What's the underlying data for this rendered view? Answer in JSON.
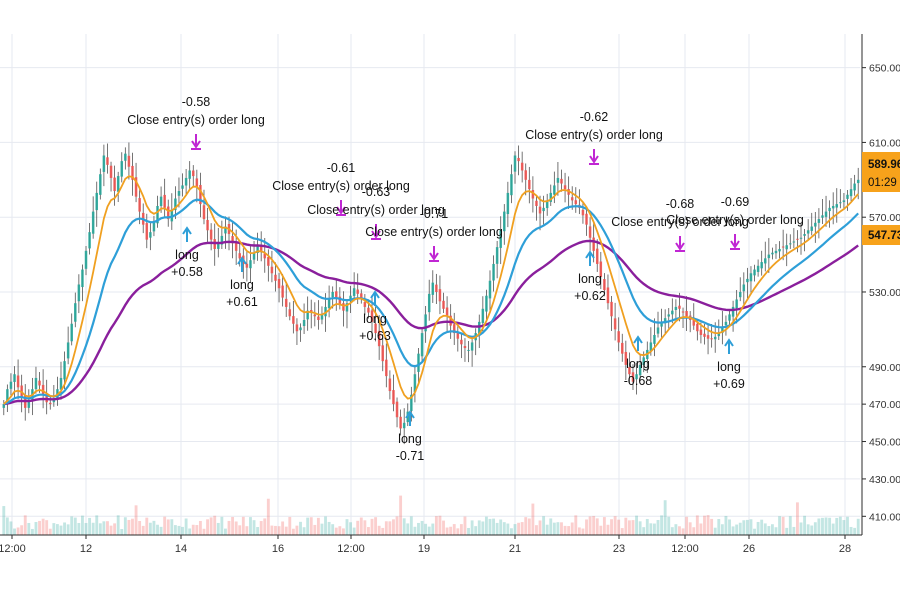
{
  "chart_data": {
    "type": "candlestick",
    "x_ticks": [
      "12:00",
      "12",
      "14",
      "16",
      "12:00",
      "19",
      "21",
      "23",
      "12:00",
      "26",
      "28"
    ],
    "y_ticks": [
      410,
      430,
      450,
      470,
      490,
      530,
      570,
      610,
      650
    ],
    "ylim": [
      400,
      668
    ],
    "current_price": {
      "value": "589.96",
      "countdown": "01:29",
      "color": "#f7a21b"
    },
    "level_label": {
      "value": "547.73",
      "color": "#f7a21b"
    },
    "colors": {
      "up": "#26a69a",
      "down": "#ef5350",
      "wick": "#333333",
      "ma_fast": "#f0a020",
      "ma_mid": "#2e9fd8",
      "ma_slow": "#8a1f9c",
      "signal": "#c026d3",
      "long_arrow": "#2e9fd8",
      "grid": "#e6e9f0"
    },
    "closes": [
      470,
      478,
      482,
      486,
      479,
      474,
      468,
      472,
      478,
      484,
      480,
      475,
      471,
      470,
      473,
      478,
      484,
      493,
      503,
      513,
      524,
      534,
      542,
      552,
      562,
      573,
      583,
      593,
      603,
      598,
      591,
      584,
      592,
      600,
      604,
      597,
      590,
      581,
      573,
      566,
      558,
      562,
      568,
      576,
      581,
      575,
      569,
      574,
      580,
      584,
      587,
      591,
      595,
      592,
      586,
      577,
      569,
      563,
      558,
      553,
      556,
      560,
      565,
      561,
      556,
      552,
      548,
      545,
      543,
      547,
      551,
      555,
      552,
      548,
      544,
      540,
      536,
      532,
      527,
      522,
      517,
      513,
      509,
      511,
      515,
      520,
      519,
      517,
      515,
      518,
      522,
      526,
      530,
      527,
      523,
      520,
      524,
      528,
      532,
      529,
      526,
      522,
      519,
      514,
      508,
      501,
      493,
      485,
      477,
      470,
      463,
      457,
      460,
      466,
      475,
      486,
      497,
      508,
      518,
      529,
      535,
      530,
      525,
      521,
      517,
      512,
      508,
      505,
      502,
      500,
      499,
      503,
      508,
      514,
      521,
      528,
      536,
      545,
      554,
      563,
      573,
      583,
      593,
      603,
      600,
      595,
      590,
      585,
      580,
      576,
      572,
      575,
      579,
      583,
      587,
      591,
      588,
      585,
      582,
      579,
      577,
      575,
      571,
      566,
      559,
      552,
      545,
      538,
      531,
      524,
      517,
      510,
      503,
      497,
      491,
      486,
      482,
      486,
      491,
      495,
      499,
      503,
      507,
      511,
      514,
      516,
      518,
      520,
      522,
      521,
      519,
      517,
      515,
      512,
      509,
      507,
      506,
      505,
      505,
      506,
      508,
      511,
      514,
      518,
      522,
      526,
      530,
      534,
      537,
      540,
      542,
      544,
      546,
      548,
      550,
      551,
      552,
      553,
      554,
      555,
      556,
      557,
      558,
      559,
      561,
      563,
      565,
      567,
      569,
      571,
      573,
      575,
      576,
      577,
      578,
      579,
      582,
      585,
      588,
      590
    ],
    "trades": [
      {
        "type": "close",
        "text": "Close entry(s) order long",
        "pnl": "-0.58"
      },
      {
        "type": "long",
        "text": "long",
        "pnl": "+0.58"
      },
      {
        "type": "long",
        "text": "long",
        "pnl": "+0.61"
      },
      {
        "type": "close",
        "text": "Close entry(s) order long",
        "pnl": "-0.61"
      },
      {
        "type": "close",
        "text": "Close entry(s) order long",
        "pnl": "-0.63"
      },
      {
        "type": "long",
        "text": "long",
        "pnl": "+0.63"
      },
      {
        "type": "long",
        "text": "long",
        "pnl": "-0.71"
      },
      {
        "type": "close",
        "text": "Close entry(s) order long",
        "pnl": "-0.71"
      },
      {
        "type": "close",
        "text": "Close entry(s) order long",
        "pnl": "-0.62"
      },
      {
        "type": "long",
        "text": "long",
        "pnl": "+0.62"
      },
      {
        "type": "long",
        "text": "long",
        "pnl": "-0.68"
      },
      {
        "type": "close",
        "text": "Close entry(s) order long",
        "pnl": "-0.68"
      },
      {
        "type": "close",
        "text": "Close entry(s) order long",
        "pnl": "-0.69"
      },
      {
        "type": "long",
        "text": "long",
        "pnl": "+0.69"
      }
    ]
  }
}
